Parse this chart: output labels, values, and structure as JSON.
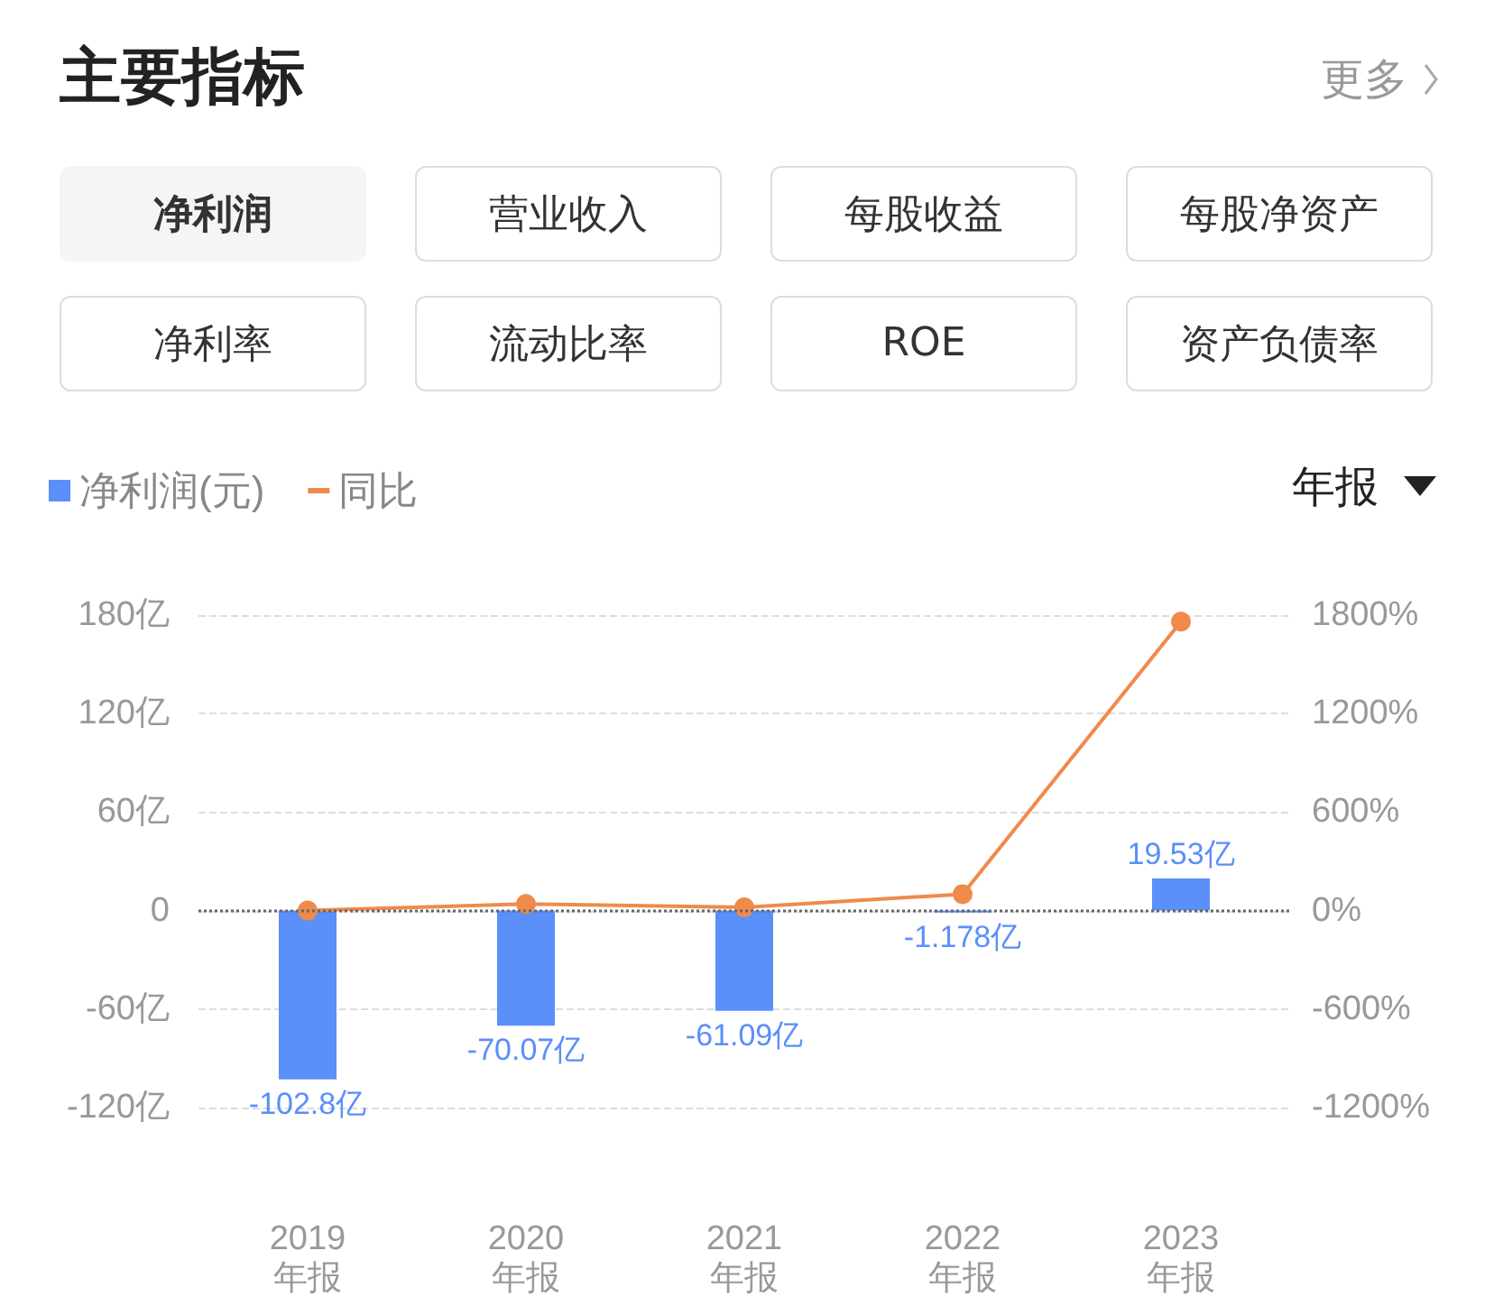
{
  "chart_data": {
    "type": "bar",
    "title": "主要指标",
    "annotations": [
      "更多",
      "净利润",
      "营业收入",
      "每股收益",
      "每股净资产",
      "净利率",
      "流动比率",
      "ROE",
      "资产负债率",
      "年报"
    ],
    "categories": [
      "2019\n年报",
      "2020\n年报",
      "2021\n年报",
      "2022\n年报",
      "2023\n年报"
    ],
    "series": [
      {
        "name": "净利润(元)",
        "color": "#5b8ff9",
        "values": [
          -102.8,
          -70.07,
          -61.09,
          -1.178,
          19.53
        ],
        "value_labels": [
          "-102.8亿",
          "-70.07亿",
          "-61.09亿",
          "-1.178亿",
          "19.53亿"
        ]
      },
      {
        "name": "同比",
        "type": "line",
        "axis": "y2",
        "color": "#f08a4b",
        "values": [
          0,
          40,
          20,
          100,
          1760
        ],
        "marker": "circle",
        "line_style": "solid"
      }
    ],
    "ylim": [
      -120,
      180
    ],
    "yticks": [
      {
        "value": -120,
        "label": "-120亿"
      },
      {
        "value": -60,
        "label": "-60亿"
      },
      {
        "value": 0,
        "label": "0"
      },
      {
        "value": 60,
        "label": "60亿"
      },
      {
        "value": 120,
        "label": "120亿"
      },
      {
        "value": 180,
        "label": "180亿"
      }
    ],
    "y2lim": [
      -1200,
      1800
    ],
    "y2ticks": [
      {
        "value": -1200,
        "label": "-1200%"
      },
      {
        "value": -600,
        "label": "-600%"
      },
      {
        "value": 0,
        "label": "0%"
      },
      {
        "value": 600,
        "label": "600%"
      },
      {
        "value": 1200,
        "label": "1200%"
      },
      {
        "value": 1800,
        "label": "1800%"
      }
    ],
    "ref_lines": [
      {
        "axis": "y",
        "value": 0,
        "color": "#666666",
        "line_style": "dotted"
      }
    ],
    "grid": "y",
    "legend": "top left"
  }
}
